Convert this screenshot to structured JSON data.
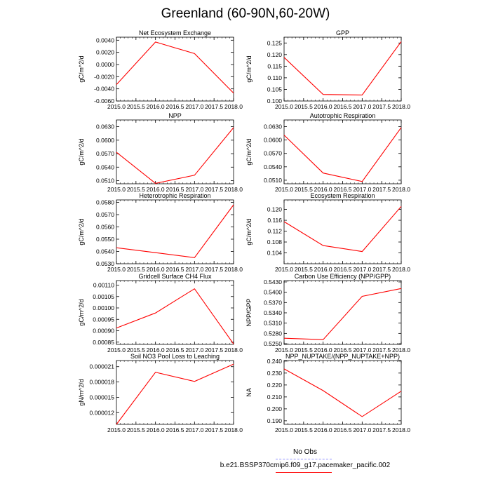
{
  "figure": {
    "title": "Greenland (60-90N,60-20W)",
    "legend": [
      {
        "label": "No Obs",
        "color": "#9090ff",
        "style": "dashed"
      },
      {
        "label": "b.e21.BSSP370cmip6.f09_g17.pacemaker_pacific.002",
        "color": "#ff0000",
        "style": "solid"
      }
    ]
  },
  "chart_data": [
    {
      "type": "line",
      "title": "Net Ecosystem Exchange",
      "xlabel": "",
      "ylabel": "gC/m^2/d",
      "xlim": [
        2015.0,
        2018.0
      ],
      "ylim": [
        -0.006,
        0.0045
      ],
      "xticks": [
        2015.0,
        2015.5,
        2016.0,
        2016.5,
        2017.0,
        2017.5,
        2018.0
      ],
      "xtick_labels": [
        "2015.0",
        "2015.5",
        "2016.0",
        "2016.5",
        "2017.0",
        "2017.5",
        "2018.0"
      ],
      "yticks": [
        -0.006,
        -0.004,
        -0.002,
        0.0,
        0.002,
        0.004
      ],
      "ytick_labels": [
        "-0.0060",
        "-0.0040",
        "-0.0020",
        "0.0000",
        "0.0020",
        "0.0040"
      ],
      "series": [
        {
          "color": "#ff0000",
          "x": [
            2015.0,
            2016.0,
            2017.0,
            2018.0
          ],
          "y": [
            -0.0033,
            0.0037,
            0.0018,
            -0.0047
          ]
        }
      ]
    },
    {
      "type": "line",
      "title": "GPP",
      "xlabel": "",
      "ylabel": "gC/m^2/d",
      "xlim": [
        2015.0,
        2018.0
      ],
      "ylim": [
        0.1,
        0.1275
      ],
      "xticks": [
        2015.0,
        2015.5,
        2016.0,
        2016.5,
        2017.0,
        2017.5,
        2018.0
      ],
      "xtick_labels": [
        "2015.0",
        "2015.5",
        "2016.0",
        "2016.5",
        "2017.0",
        "2017.5",
        "2018.0"
      ],
      "yticks": [
        0.1,
        0.105,
        0.11,
        0.115,
        0.12,
        0.125
      ],
      "ytick_labels": [
        "0.100",
        "0.105",
        "0.110",
        "0.115",
        "0.120",
        "0.125"
      ],
      "series": [
        {
          "color": "#ff0000",
          "x": [
            2015.0,
            2016.0,
            2017.0,
            2018.0
          ],
          "y": [
            0.1188,
            0.1028,
            0.1026,
            0.1256
          ]
        }
      ]
    },
    {
      "type": "line",
      "title": "NPP",
      "xlabel": "",
      "ylabel": "gC/m^2/d",
      "xlim": [
        2015.0,
        2018.0
      ],
      "ylim": [
        0.0503,
        0.0645
      ],
      "xticks": [
        2015.0,
        2015.5,
        2016.0,
        2016.5,
        2017.0,
        2017.5,
        2018.0
      ],
      "xtick_labels": [
        "2015.0",
        "2015.5",
        "2016.0",
        "2016.5",
        "2017.0",
        "2017.5",
        "2018.0"
      ],
      "yticks": [
        0.051,
        0.054,
        0.057,
        0.06,
        0.063
      ],
      "ytick_labels": [
        "0.0510",
        "0.0540",
        "0.0570",
        "0.0600",
        "0.0630"
      ],
      "series": [
        {
          "color": "#ff0000",
          "x": [
            2015.0,
            2016.0,
            2017.0,
            2018.0
          ],
          "y": [
            0.0573,
            0.0504,
            0.0522,
            0.0628
          ]
        }
      ]
    },
    {
      "type": "line",
      "title": "Autotrophic Respiration",
      "xlabel": "",
      "ylabel": "gC/m^2/d",
      "xlim": [
        2015.0,
        2018.0
      ],
      "ylim": [
        0.0502,
        0.0645
      ],
      "xticks": [
        2015.0,
        2015.5,
        2016.0,
        2016.5,
        2017.0,
        2017.5,
        2018.0
      ],
      "xtick_labels": [
        "2015.0",
        "2015.5",
        "2016.0",
        "2016.5",
        "2017.0",
        "2017.5",
        "2018.0"
      ],
      "yticks": [
        0.051,
        0.054,
        0.057,
        0.06,
        0.063
      ],
      "ytick_labels": [
        "0.0510",
        "0.0540",
        "0.0570",
        "0.0600",
        "0.0630"
      ],
      "series": [
        {
          "color": "#ff0000",
          "x": [
            2015.0,
            2016.0,
            2017.0,
            2018.0
          ],
          "y": [
            0.0611,
            0.0526,
            0.0507,
            0.0628
          ]
        }
      ]
    },
    {
      "type": "line",
      "title": "Heterotrophic Respiration",
      "xlabel": "",
      "ylabel": "gC/m^2/d",
      "xlim": [
        2015.0,
        2018.0
      ],
      "ylim": [
        0.053,
        0.0582
      ],
      "xticks": [
        2015.0,
        2015.5,
        2016.0,
        2016.5,
        2017.0,
        2017.5,
        2018.0
      ],
      "xtick_labels": [
        "2015.0",
        "2015.5",
        "2016.0",
        "2016.5",
        "2017.0",
        "2017.5",
        "2018.0"
      ],
      "yticks": [
        0.053,
        0.054,
        0.055,
        0.056,
        0.057,
        0.058
      ],
      "ytick_labels": [
        "0.0530",
        "0.0540",
        "0.0550",
        "0.0560",
        "0.0570",
        "0.0580"
      ],
      "series": [
        {
          "color": "#ff0000",
          "x": [
            2015.0,
            2016.0,
            2017.0,
            2018.0
          ],
          "y": [
            0.0543,
            0.0539,
            0.0535,
            0.0578
          ]
        }
      ]
    },
    {
      "type": "line",
      "title": "Ecosystem Respiration",
      "xlabel": "",
      "ylabel": "gC/m^2/d",
      "xlim": [
        2015.0,
        2018.0
      ],
      "ylim": [
        0.1,
        0.1235
      ],
      "xticks": [
        2015.0,
        2015.5,
        2016.0,
        2016.5,
        2017.0,
        2017.5,
        2018.0
      ],
      "xtick_labels": [
        "2015.0",
        "2015.5",
        "2016.0",
        "2016.5",
        "2017.0",
        "2017.5",
        "2018.0"
      ],
      "yticks": [
        0.104,
        0.108,
        0.112,
        0.116,
        0.12
      ],
      "ytick_labels": [
        "0.104",
        "0.108",
        "0.112",
        "0.116",
        "0.120"
      ],
      "series": [
        {
          "color": "#ff0000",
          "x": [
            2015.0,
            2016.0,
            2017.0,
            2018.0
          ],
          "y": [
            0.1155,
            0.1067,
            0.1045,
            0.1211
          ]
        }
      ]
    },
    {
      "type": "line",
      "title": "Gridcell Surface CH4 Flux",
      "xlabel": "",
      "ylabel": "gC/m^2/d",
      "xlim": [
        2015.0,
        2018.0
      ],
      "ylim": [
        0.00084,
        0.00112
      ],
      "xticks": [
        2015.0,
        2015.5,
        2016.0,
        2016.5,
        2017.0,
        2017.5,
        2018.0
      ],
      "xtick_labels": [
        "2015.0",
        "2015.5",
        "2016.0",
        "2016.5",
        "2017.0",
        "2017.5",
        "2018.0"
      ],
      "yticks": [
        0.00085,
        0.0009,
        0.00095,
        0.001,
        0.00105,
        0.0011
      ],
      "ytick_labels": [
        "0.00085",
        "0.00090",
        "0.00095",
        "0.00100",
        "0.00105",
        "0.00110"
      ],
      "series": [
        {
          "color": "#ff0000",
          "x": [
            2015.0,
            2016.0,
            2017.0,
            2018.0
          ],
          "y": [
            0.000912,
            0.000978,
            0.001084,
            0.000842
          ]
        }
      ]
    },
    {
      "type": "line",
      "title": "Carbon Use Efficiency (NPP/GPP)",
      "xlabel": "",
      "ylabel": "NPP/GPP",
      "xlim": [
        2015.0,
        2018.0
      ],
      "ylim": [
        0.5248,
        0.5434
      ],
      "xticks": [
        2015.0,
        2015.5,
        2016.0,
        2016.5,
        2017.0,
        2017.5,
        2018.0
      ],
      "xtick_labels": [
        "2015.0",
        "2015.5",
        "2016.0",
        "2016.5",
        "2017.0",
        "2017.5",
        "2018.0"
      ],
      "yticks": [
        0.525,
        0.528,
        0.531,
        0.534,
        0.537,
        0.54,
        0.543
      ],
      "ytick_labels": [
        "0.5250",
        "0.5280",
        "0.5310",
        "0.5340",
        "0.5370",
        "0.5400",
        "0.5430"
      ],
      "series": [
        {
          "color": "#ff0000",
          "x": [
            2015.0,
            2016.0,
            2017.0,
            2018.0
          ],
          "y": [
            0.5266,
            0.5262,
            0.5388,
            0.5411
          ]
        }
      ]
    },
    {
      "type": "line",
      "title": "Soil NO3 Pool Loss to Leaching",
      "xlabel": "",
      "ylabel": "gN/m^2/d",
      "xlim": [
        2015.0,
        2018.0
      ],
      "ylim": [
        9.7e-06,
        2.22e-05
      ],
      "xticks": [
        2015.0,
        2015.5,
        2016.0,
        2016.5,
        2017.0,
        2017.5,
        2018.0
      ],
      "xtick_labels": [
        "2015.0",
        "2015.5",
        "2016.0",
        "2016.5",
        "2017.0",
        "2017.5",
        "2018.0"
      ],
      "yticks": [
        1.2e-05,
        1.5e-05,
        1.8e-05,
        2.1e-05
      ],
      "ytick_labels": [
        "0.000012",
        "0.000015",
        "0.000018",
        "0.000021"
      ],
      "series": [
        {
          "color": "#ff0000",
          "x": [
            2015.0,
            2016.0,
            2017.0,
            2018.0
          ],
          "y": [
            9.7e-06,
            1.99e-05,
            1.81e-05,
            2.15e-05
          ]
        }
      ]
    },
    {
      "type": "line",
      "title": "NPP_NUPTAKE/(NPP_NUPTAKE+NPP)",
      "xlabel": "",
      "ylabel": "NA",
      "xlim": [
        2015.0,
        2018.0
      ],
      "ylim": [
        0.187,
        0.2405
      ],
      "xticks": [
        2015.0,
        2015.5,
        2016.0,
        2016.5,
        2017.0,
        2017.5,
        2018.0
      ],
      "xtick_labels": [
        "2015.0",
        "2015.5",
        "2016.0",
        "2016.5",
        "2017.0",
        "2017.5",
        "2018.0"
      ],
      "yticks": [
        0.19,
        0.2,
        0.21,
        0.22,
        0.23,
        0.24
      ],
      "ytick_labels": [
        "0.190",
        "0.200",
        "0.210",
        "0.220",
        "0.230",
        "0.240"
      ],
      "series": [
        {
          "color": "#ff0000",
          "x": [
            2015.0,
            2016.0,
            2017.0,
            2018.0
          ],
          "y": [
            0.2335,
            0.2153,
            0.1935,
            0.2148
          ]
        }
      ]
    }
  ]
}
